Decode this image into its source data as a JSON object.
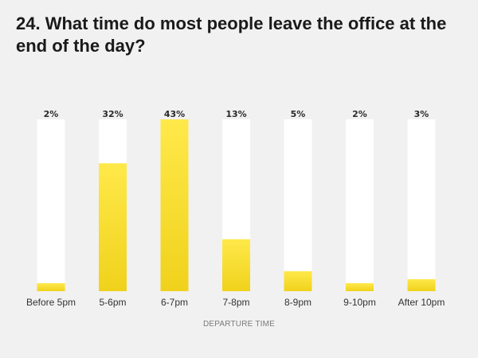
{
  "chart_data": {
    "type": "bar",
    "title": "24. What time do most people leave the office at the end of the day?",
    "xlabel": "DEPARTURE TIME",
    "ylabel": "",
    "categories": [
      "Before 5pm",
      "5-6pm",
      "6-7pm",
      "7-8pm",
      "8-9pm",
      "9-10pm",
      "After 10pm"
    ],
    "values": [
      2,
      32,
      43,
      13,
      5,
      2,
      3
    ],
    "value_labels": [
      "2%",
      "32%",
      "43%",
      "13%",
      "5%",
      "2%",
      "3%"
    ],
    "ylim": [
      0,
      43
    ],
    "grid": false,
    "legend": "none",
    "colors": {
      "bar_fill_top": "#ffe94a",
      "bar_fill_bottom": "#f0d21c",
      "track": "#ffffff",
      "background": "#f1f1f1"
    }
  }
}
